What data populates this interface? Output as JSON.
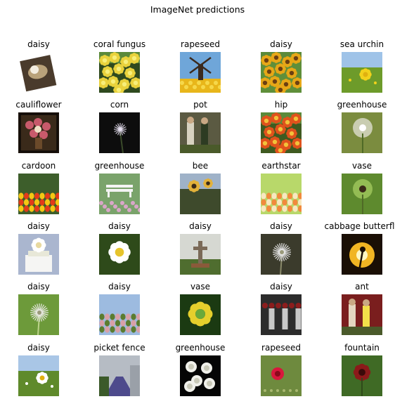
{
  "figure": {
    "title": "ImageNet predictions"
  },
  "grid": {
    "rows": [
      {
        "cells": [
          {
            "label": "daisy",
            "scene": "tilted",
            "c1": "#4a3b2c",
            "c2": "#b9a27a",
            "c3": "#f3ede0"
          },
          {
            "label": "coral fungus",
            "scene": "flowers",
            "c1": "#2f4a1e",
            "c2": "#e9d23c",
            "c3": "#f7ef7a"
          },
          {
            "label": "rapeseed",
            "scene": "windmill",
            "c1": "#6fa6d9",
            "c2": "#e8b61a",
            "c3": "#3b2a1e"
          },
          {
            "label": "daisy",
            "scene": "flowers",
            "c1": "#5f8f3a",
            "c2": "#e7a717",
            "c3": "#6b3f12"
          },
          {
            "label": "sea urchin",
            "scene": "field",
            "c1": "#9fc3e8",
            "c2": "#6d9b2a",
            "c3": "#f2d11c"
          }
        ]
      },
      {
        "cells": [
          {
            "label": "cauliflower",
            "scene": "bouquet",
            "c1": "#1a120c",
            "c2": "#c85a6b",
            "c3": "#f0e2c6"
          },
          {
            "label": "corn",
            "scene": "dark",
            "c1": "#0d0d0d",
            "c2": "#3a4a2a",
            "c3": "#e6e0f0"
          },
          {
            "label": "pot",
            "scene": "people",
            "c1": "#5b5a42",
            "c2": "#d8d2c0",
            "c3": "#2d3b22"
          },
          {
            "label": "hip",
            "scene": "flowers",
            "c1": "#3f5a20",
            "c2": "#e0521c",
            "c3": "#f2c23a"
          },
          {
            "label": "greenhouse",
            "scene": "blur",
            "c1": "#7b8c3f",
            "c2": "#d7d8c6",
            "c3": "#ffffff"
          }
        ]
      },
      {
        "cells": [
          {
            "label": "cardoon",
            "scene": "tulips",
            "c1": "#3d5e2b",
            "c2": "#e23b1a",
            "c3": "#f5c713"
          },
          {
            "label": "greenhouse",
            "scene": "bench",
            "c1": "#7aa36b",
            "c2": "#f4f4f4",
            "c3": "#d9a6c8"
          },
          {
            "label": "bee",
            "scene": "garden",
            "c1": "#3e4a2c",
            "c2": "#9fb2c8",
            "c3": "#e2b13a"
          },
          {
            "label": "earthstar",
            "scene": "tulips",
            "c1": "#b8d86a",
            "c2": "#f18a3c",
            "c3": "#f8e8c0"
          },
          {
            "label": "vase",
            "scene": "blur",
            "c1": "#5e8a2e",
            "c2": "#9ec45b",
            "c3": "#3a2a18"
          }
        ]
      },
      {
        "cells": [
          {
            "label": "daisy",
            "scene": "cake",
            "c1": "#aab6cf",
            "c2": "#f5f5f3",
            "c3": "#e8e8d8"
          },
          {
            "label": "daisy",
            "scene": "daisy",
            "c1": "#2e4a1a",
            "c2": "#ffffff",
            "c3": "#e6c42c"
          },
          {
            "label": "daisy",
            "scene": "cross",
            "c1": "#d6d8d2",
            "c2": "#7b6a58",
            "c3": "#4f6d2f"
          },
          {
            "label": "daisy",
            "scene": "dandelion",
            "c1": "#3b3b2c",
            "c2": "#e8e8e8",
            "c3": "#8a8a6a"
          },
          {
            "label": "cabbage butterfly",
            "scene": "sunset",
            "c1": "#1a0f05",
            "c2": "#f1b523",
            "c3": "#fff7c2"
          }
        ]
      },
      {
        "cells": [
          {
            "label": "daisy",
            "scene": "dandelion",
            "c1": "#6d9a3a",
            "c2": "#e8e8e2",
            "c3": "#bcd38a"
          },
          {
            "label": "daisy",
            "scene": "tulips",
            "c1": "#9dbbe0",
            "c2": "#d8a0a8",
            "c3": "#5b7c30"
          },
          {
            "label": "vase",
            "scene": "sunflower",
            "c1": "#1b3a12",
            "c2": "#e5cf2c",
            "c3": "#6aa93a"
          },
          {
            "label": "daisy",
            "scene": "crowd",
            "c1": "#2c2c2c",
            "c2": "#c8c8c8",
            "c3": "#8b1d1d"
          },
          {
            "label": "ant",
            "scene": "people",
            "c1": "#7a1e1e",
            "c2": "#e4d6c0",
            "c3": "#f2e04a"
          }
        ]
      },
      {
        "cells": [
          {
            "label": "daisy",
            "scene": "field",
            "c1": "#a9c6e6",
            "c2": "#5f8a2b",
            "c3": "#ffffff"
          },
          {
            "label": "picket fence",
            "scene": "path",
            "c1": "#b6bcc4",
            "c2": "#4d4a8c",
            "c3": "#3b5a2a"
          },
          {
            "label": "greenhouse",
            "scene": "roses",
            "c1": "#050505",
            "c2": "#f0f0ea",
            "c3": "#c9c9b8"
          },
          {
            "label": "rapeseed",
            "scene": "rose",
            "c1": "#6e8a3e",
            "c2": "#d8173c",
            "c3": "#a8b870"
          },
          {
            "label": "fountain",
            "scene": "flower",
            "c1": "#3f6a25",
            "c2": "#8b1a1a",
            "c3": "#a6c86a"
          }
        ]
      }
    ]
  }
}
